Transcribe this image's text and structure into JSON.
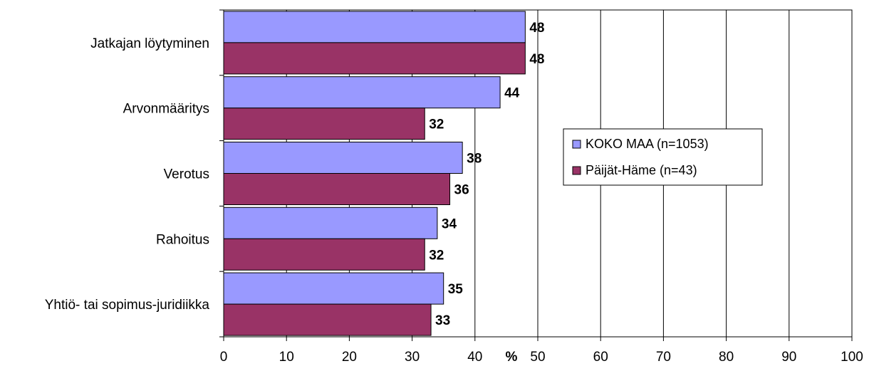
{
  "chart_data": {
    "type": "bar",
    "orientation": "horizontal",
    "categories": [
      "Jatkajan löytyminen",
      "Arvonmääritys",
      "Verotus",
      "Rahoitus",
      "Yhtiö- tai sopimus-juridiikka"
    ],
    "series": [
      {
        "name": "KOKO MAA (n=1053)",
        "values": [
          48,
          44,
          38,
          34,
          35
        ],
        "color": "#9999ff"
      },
      {
        "name": "Päijät-Häme (n=43)",
        "values": [
          48,
          32,
          36,
          32,
          33
        ],
        "color": "#993366"
      }
    ],
    "xlabel": "%",
    "xlim": [
      0,
      100
    ],
    "xticks": [
      "0",
      "10",
      "20",
      "30",
      "40",
      "50",
      "60",
      "70",
      "80",
      "90",
      "100"
    ],
    "grid": "vertical",
    "legend_position": "right"
  }
}
